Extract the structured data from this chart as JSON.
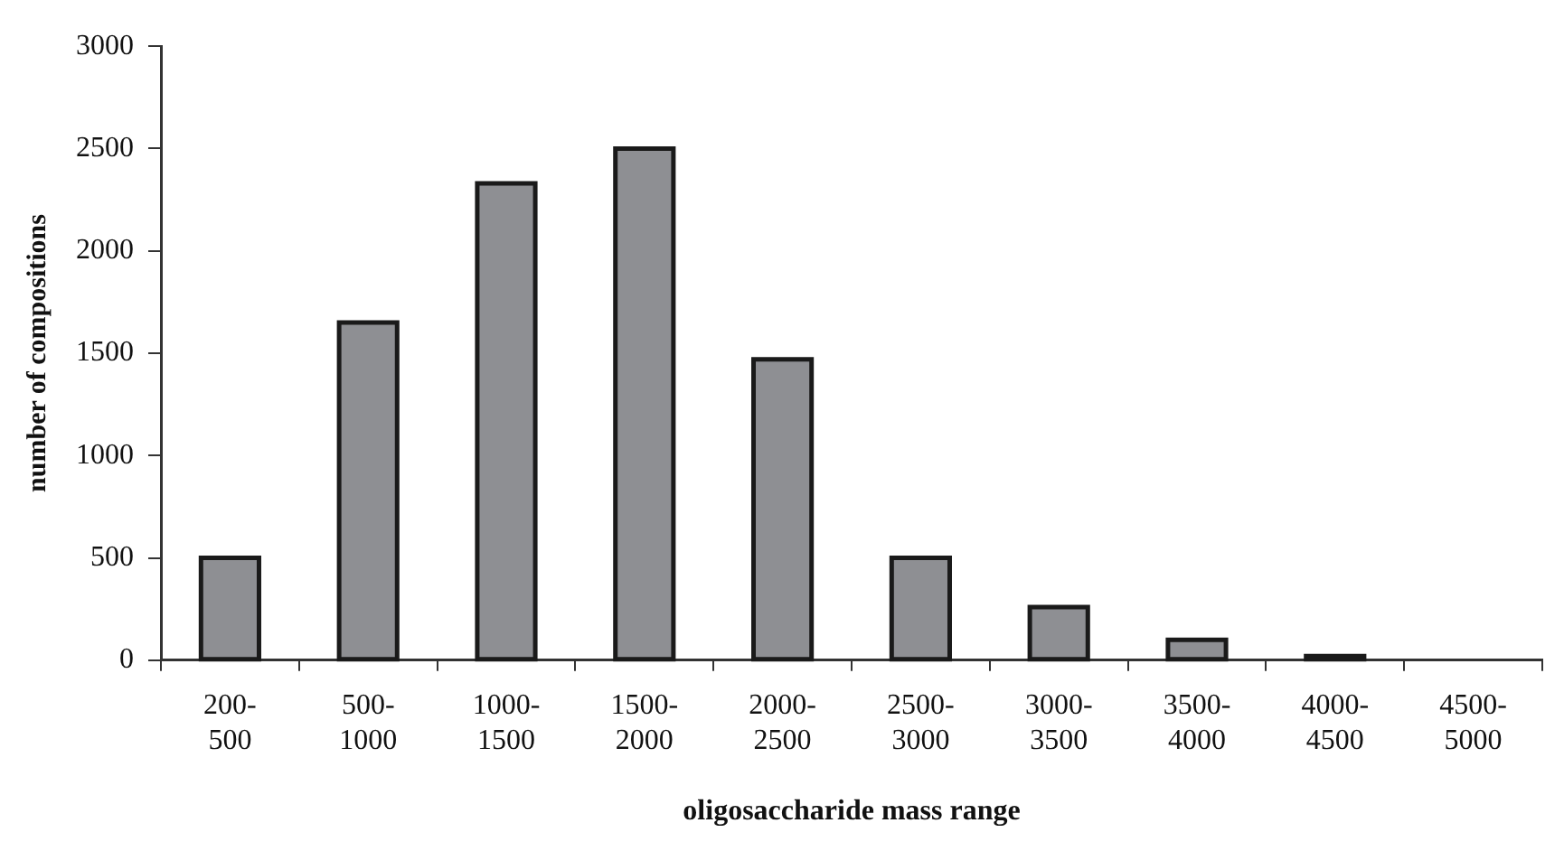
{
  "chart_data": {
    "type": "bar",
    "xlabel": "oligosaccharide mass range",
    "ylabel": "number of compositions",
    "categories": [
      "200-500",
      "500-1000",
      "1000-1500",
      "1500-2000",
      "2000-2500",
      "2500-3000",
      "3000-3500",
      "3500-4000",
      "4000-4500",
      "4500-5000"
    ],
    "values": [
      500,
      1650,
      2330,
      2500,
      1470,
      500,
      260,
      100,
      20,
      0
    ],
    "color": "#8e8f93",
    "ylim": [
      0,
      3000
    ],
    "yticks": [
      0,
      500,
      1000,
      1500,
      2000,
      2500,
      3000
    ],
    "grid": false,
    "legend": false
  }
}
